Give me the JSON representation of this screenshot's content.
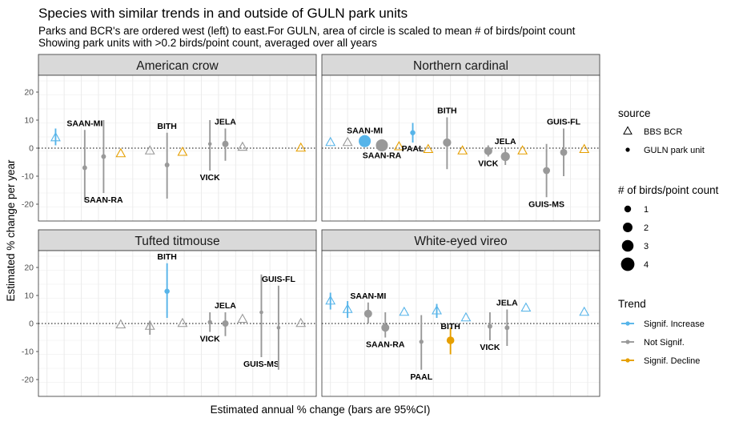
{
  "title": "Species with similar trends in and outside of GULN park units",
  "subtitle_lines": [
    "Parks and BCR's are ordered west (left) to east.For GULN, area of circle is scaled to mean # of birds/point count",
    "Showing park units with >0.2 birds/point count, averaged over all years"
  ],
  "colors": {
    "increase": "#56B4E9",
    "not_signif": "#999999",
    "decline": "#E69F00"
  },
  "chart_data": {
    "type": "scatter",
    "title": "Species with similar trends in and outside of GULN park units",
    "xlabel": "Estimated annual % change (bars are 95%CI)",
    "ylabel": "Estimated % change per year",
    "ylim": [
      -26,
      26
    ],
    "xlim": [
      0.5,
      16.7
    ],
    "y_ticks": [
      -20,
      -10,
      0,
      10,
      20
    ],
    "grid": true,
    "zero_line": "dotted",
    "legend_position": "right",
    "legends": {
      "source": {
        "title": "source",
        "items": [
          {
            "label": "BBS BCR",
            "shape": "triangle"
          },
          {
            "label": "GULN park unit",
            "shape": "circle"
          }
        ]
      },
      "size": {
        "title": "# of birds/point count",
        "items": [
          {
            "label": "1",
            "value": 1
          },
          {
            "label": "2",
            "value": 2
          },
          {
            "label": "3",
            "value": 3
          },
          {
            "label": "4",
            "value": 4
          }
        ]
      },
      "trend": {
        "title": "Trend",
        "items": [
          {
            "label": "Signif. Increase",
            "key": "increase"
          },
          {
            "label": "Not Signif.",
            "key": "not_signif"
          },
          {
            "label": "Signif. Decline",
            "key": "decline"
          }
        ]
      }
    },
    "panels": [
      {
        "name": "American crow",
        "points": [
          {
            "x": 1.5,
            "y": 3.7,
            "lo": 1,
            "hi": 7,
            "trend": "increase",
            "source": "BBS BCR"
          },
          {
            "x": 3.2,
            "y": -7,
            "lo": -19,
            "hi": 6.5,
            "trend": "not_signif",
            "source": "GULN park unit",
            "size": 0.5,
            "label": "SAAN-MI"
          },
          {
            "x": 4.3,
            "y": -3,
            "lo": -16,
            "hi": 10,
            "trend": "not_signif",
            "source": "GULN park unit",
            "size": 0.5,
            "label": "SAAN-RA"
          },
          {
            "x": 5.3,
            "y": -2,
            "trend": "decline",
            "source": "BBS BCR"
          },
          {
            "x": 7.0,
            "y": -1,
            "trend": "not_signif",
            "source": "BBS BCR"
          },
          {
            "x": 8.0,
            "y": -6,
            "lo": -18,
            "hi": 5.5,
            "trend": "not_signif",
            "source": "GULN park unit",
            "size": 0.5,
            "label": "BITH"
          },
          {
            "x": 8.9,
            "y": -1.5,
            "trend": "decline",
            "source": "BBS BCR"
          },
          {
            "x": 10.5,
            "y": 1.5,
            "lo": -8,
            "hi": 10,
            "trend": "not_signif",
            "source": "GULN park unit",
            "size": 0.3,
            "label": "VICK"
          },
          {
            "x": 11.4,
            "y": 1.5,
            "lo": -4.5,
            "hi": 7,
            "trend": "not_signif",
            "source": "GULN park unit",
            "size": 0.9,
            "label": "JELA"
          },
          {
            "x": 12.4,
            "y": 0.3,
            "trend": "not_signif",
            "source": "BBS BCR"
          },
          {
            "x": 15.8,
            "y": 0,
            "trend": "decline",
            "source": "BBS BCR"
          }
        ]
      },
      {
        "name": "Northern cardinal",
        "points": [
          {
            "x": 1.0,
            "y": 2,
            "trend": "increase",
            "source": "BBS BCR"
          },
          {
            "x": 2.0,
            "y": 2,
            "trend": "not_signif",
            "source": "BBS BCR"
          },
          {
            "x": 3.0,
            "y": 2.5,
            "trend": "increase",
            "source": "GULN park unit",
            "size": 3.2,
            "label": "SAAN-MI"
          },
          {
            "x": 4.0,
            "y": 1,
            "trend": "not_signif",
            "source": "GULN park unit",
            "size": 3.2,
            "label": "SAAN-RA"
          },
          {
            "x": 5.0,
            "y": 0.5,
            "trend": "decline",
            "source": "BBS BCR"
          },
          {
            "x": 5.8,
            "y": 5.5,
            "lo": 2,
            "hi": 9,
            "trend": "increase",
            "source": "GULN park unit",
            "size": 0.6,
            "label": "PAAL"
          },
          {
            "x": 6.7,
            "y": -0.5,
            "trend": "decline",
            "source": "BBS BCR"
          },
          {
            "x": 7.8,
            "y": 2,
            "lo": -7.5,
            "hi": 11,
            "trend": "not_signif",
            "source": "GULN park unit",
            "size": 1.5,
            "label": "BITH"
          },
          {
            "x": 8.7,
            "y": -1,
            "trend": "decline",
            "source": "BBS BCR"
          },
          {
            "x": 10.2,
            "y": -1,
            "lo": -3,
            "hi": 1,
            "trend": "not_signif",
            "source": "GULN park unit",
            "size": 1.5,
            "label": "VICK"
          },
          {
            "x": 11.2,
            "y": -3,
            "lo": -6,
            "hi": 0,
            "trend": "not_signif",
            "source": "GULN park unit",
            "size": 1.8,
            "label": "JELA"
          },
          {
            "x": 12.2,
            "y": -1,
            "trend": "decline",
            "source": "BBS BCR"
          },
          {
            "x": 13.6,
            "y": -8,
            "lo": -17.5,
            "hi": 1.5,
            "trend": "not_signif",
            "source": "GULN park unit",
            "size": 1.1,
            "label": "GUIS-MS"
          },
          {
            "x": 14.6,
            "y": -1.5,
            "lo": -10,
            "hi": 7,
            "trend": "not_signif",
            "source": "GULN park unit",
            "size": 1.1,
            "label": "GUIS-FL"
          },
          {
            "x": 15.8,
            "y": -0.5,
            "trend": "decline",
            "source": "BBS BCR"
          }
        ]
      },
      {
        "name": "Tufted titmouse",
        "points": [
          {
            "x": 5.3,
            "y": -0.5,
            "trend": "not_signif",
            "source": "BBS BCR"
          },
          {
            "x": 7.0,
            "y": -1,
            "lo": -4,
            "hi": 1,
            "trend": "not_signif",
            "source": "BBS BCR"
          },
          {
            "x": 8.0,
            "y": 11.5,
            "lo": 2,
            "hi": 21.5,
            "trend": "increase",
            "source": "GULN park unit",
            "size": 0.6,
            "label": "BITH"
          },
          {
            "x": 8.9,
            "y": 0,
            "trend": "not_signif",
            "source": "BBS BCR"
          },
          {
            "x": 10.5,
            "y": 0.5,
            "lo": -3,
            "hi": 4,
            "trend": "not_signif",
            "source": "GULN park unit",
            "size": 0.4,
            "label": "VICK"
          },
          {
            "x": 11.4,
            "y": 0,
            "lo": -4.5,
            "hi": 4,
            "trend": "not_signif",
            "source": "GULN park unit",
            "size": 0.9,
            "label": "JELA"
          },
          {
            "x": 12.4,
            "y": 1.5,
            "trend": "not_signif",
            "source": "BBS BCR"
          },
          {
            "x": 13.5,
            "y": 4,
            "lo": -12,
            "hi": 17.5,
            "trend": "not_signif",
            "source": "GULN park unit",
            "size": 0.3,
            "label": "GUIS-MS"
          },
          {
            "x": 14.5,
            "y": -1.5,
            "lo": -16.5,
            "hi": 13.5,
            "trend": "not_signif",
            "source": "GULN park unit",
            "size": 0.3,
            "label": "GUIS-FL"
          },
          {
            "x": 15.8,
            "y": 0,
            "trend": "not_signif",
            "source": "BBS BCR"
          }
        ]
      },
      {
        "name": "White-eyed vireo",
        "points": [
          {
            "x": 1.0,
            "y": 8,
            "lo": 5,
            "hi": 11,
            "trend": "increase",
            "source": "BBS BCR"
          },
          {
            "x": 2.0,
            "y": 5,
            "lo": 2,
            "hi": 8,
            "trend": "increase",
            "source": "BBS BCR"
          },
          {
            "x": 3.2,
            "y": 3.5,
            "lo": 0,
            "hi": 7.5,
            "trend": "not_signif",
            "source": "GULN park unit",
            "size": 1.4,
            "label": "SAAN-MI"
          },
          {
            "x": 4.2,
            "y": -1.5,
            "lo": -5,
            "hi": 4,
            "trend": "not_signif",
            "source": "GULN park unit",
            "size": 1.4,
            "label": "SAAN-RA"
          },
          {
            "x": 5.3,
            "y": 4,
            "trend": "increase",
            "source": "BBS BCR"
          },
          {
            "x": 6.3,
            "y": -6.5,
            "lo": -16.5,
            "hi": 3,
            "trend": "not_signif",
            "source": "GULN park unit",
            "size": 0.4,
            "label": "PAAL"
          },
          {
            "x": 7.2,
            "y": 4.5,
            "lo": 2,
            "hi": 7,
            "trend": "increase",
            "source": "BBS BCR"
          },
          {
            "x": 8.0,
            "y": -6,
            "lo": -11,
            "hi": -1.5,
            "trend": "decline",
            "source": "GULN park unit",
            "size": 1.3,
            "label": "BITH"
          },
          {
            "x": 8.9,
            "y": 2,
            "trend": "increase",
            "source": "BBS BCR"
          },
          {
            "x": 10.3,
            "y": -1,
            "lo": -6,
            "hi": 4,
            "trend": "not_signif",
            "source": "GULN park unit",
            "size": 0.5,
            "label": "VICK"
          },
          {
            "x": 11.3,
            "y": -1.5,
            "lo": -8,
            "hi": 5,
            "trend": "not_signif",
            "source": "GULN park unit",
            "size": 0.5,
            "label": "JELA"
          },
          {
            "x": 12.4,
            "y": 5.5,
            "trend": "increase",
            "source": "BBS BCR"
          },
          {
            "x": 15.8,
            "y": 4,
            "trend": "increase",
            "source": "BBS BCR"
          }
        ]
      }
    ]
  }
}
